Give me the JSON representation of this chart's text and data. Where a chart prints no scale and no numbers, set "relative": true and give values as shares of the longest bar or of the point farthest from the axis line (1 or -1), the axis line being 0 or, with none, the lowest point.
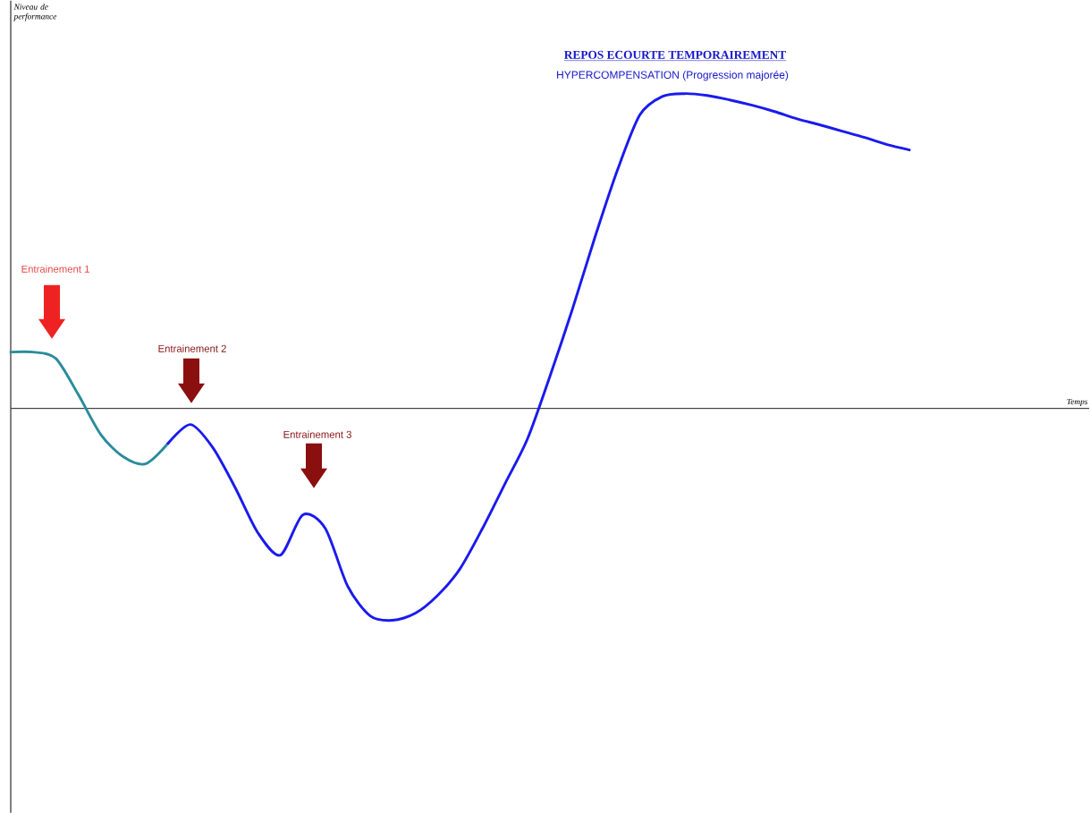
{
  "chart_data": {
    "type": "line",
    "relative": true,
    "title": "REPOS ECOURTE TEMPORAIREMENT",
    "subtitle": "HYPERCOMPENSATION (Progression majorée)",
    "categories": [
      null,
      null,
      null,
      null,
      null,
      null,
      null,
      null,
      null,
      null,
      null,
      null,
      null,
      null,
      null,
      null,
      null,
      null,
      null,
      null,
      null,
      null,
      null,
      null,
      null,
      null,
      null,
      null,
      null,
      null,
      null,
      null,
      null,
      null,
      null,
      null,
      null,
      null,
      null,
      null,
      null
    ],
    "series": [
      {
        "color": "#2a8c9c",
        "values": [
          0.179,
          0.179,
          0.159,
          0.045,
          -0.082,
          -0.153,
          -0.176,
          -0.111,
          null,
          null,
          null,
          null,
          null,
          null,
          null,
          null,
          null,
          null,
          null,
          null,
          null,
          null,
          null,
          null,
          null,
          null,
          null,
          null,
          null,
          null,
          null,
          null,
          null,
          null,
          null,
          null,
          null,
          null,
          null,
          null,
          null
        ]
      },
      {
        "color": "#1a1aee",
        "values": [
          null,
          null,
          null,
          null,
          null,
          null,
          null,
          -0.111,
          -0.051,
          -0.125,
          -0.253,
          -0.395,
          -0.466,
          -0.338,
          -0.381,
          -0.565,
          -0.659,
          -0.673,
          -0.651,
          -0.594,
          -0.509,
          -0.381,
          -0.239,
          -0.097,
          0.102,
          0.315,
          0.543,
          0.756,
          0.932,
          0.991,
          1,
          0.994,
          0.98,
          0.963,
          0.943,
          0.92,
          0.901,
          0.881,
          0.861,
          0.838,
          0.821
        ]
      }
    ],
    "annotations": [
      "Entrainement 1",
      "Entrainement 2",
      "Entrainement 3",
      "Niveau de performance",
      "Temps"
    ],
    "marker": "none",
    "line_style": "solid"
  }
}
